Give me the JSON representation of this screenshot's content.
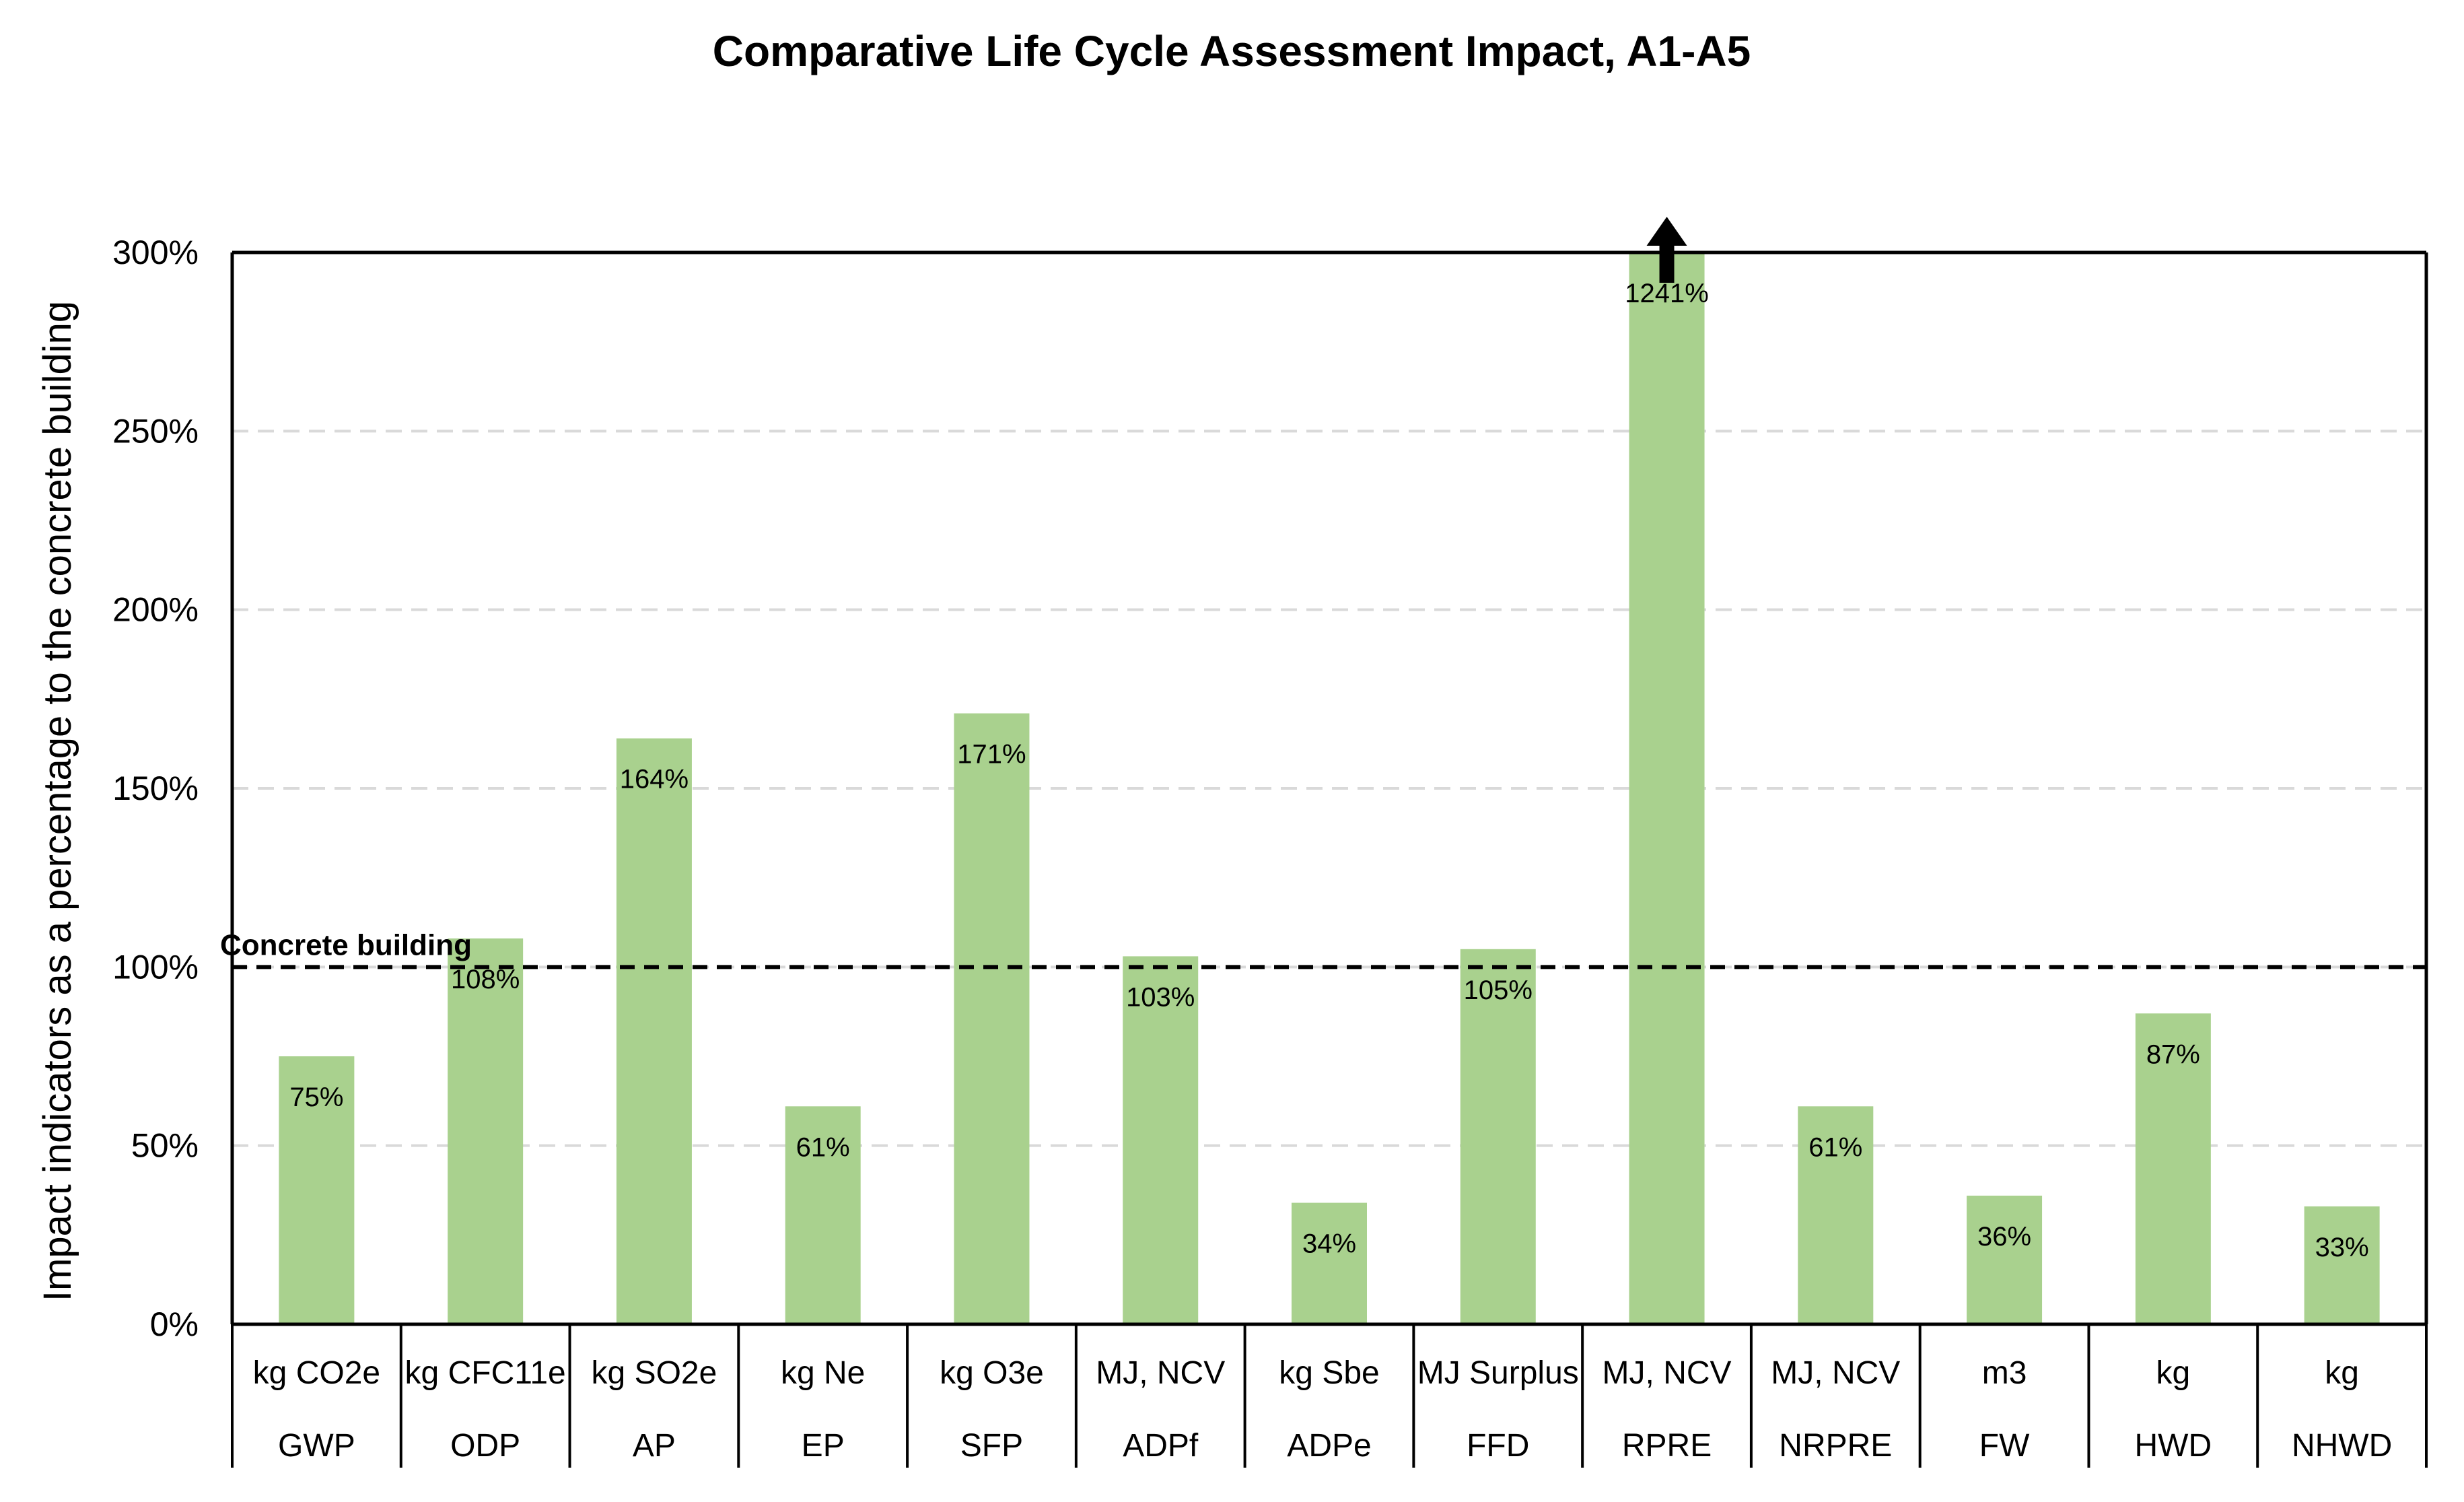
{
  "chart_data": {
    "type": "bar",
    "title": "Comparative Life Cycle Assessment Impact, A1-A5",
    "ylabel": "Impact indicators  as a percentage to the concrete building",
    "xlabel": "",
    "ylim": [
      0,
      300
    ],
    "yticks": [
      0,
      50,
      100,
      150,
      200,
      250,
      300
    ],
    "ytick_labels": [
      "0%",
      "50%",
      "100%",
      "150%",
      "200%",
      "250%",
      "300%"
    ],
    "grid": "horizontal dashed",
    "categories": [
      {
        "unit": "kg CO2e",
        "name": "GWP"
      },
      {
        "unit": "kg CFC11e",
        "name": "ODP"
      },
      {
        "unit": "kg SO2e",
        "name": "AP"
      },
      {
        "unit": "kg Ne",
        "name": "EP"
      },
      {
        "unit": "kg O3e",
        "name": "SFP"
      },
      {
        "unit": "MJ, NCV",
        "name": "ADPf"
      },
      {
        "unit": "kg Sbe",
        "name": "ADPe"
      },
      {
        "unit": "MJ Surplus",
        "name": "FFD"
      },
      {
        "unit": "MJ, NCV",
        "name": "RPRE"
      },
      {
        "unit": "MJ, NCV",
        "name": "NRPRE"
      },
      {
        "unit": "m3",
        "name": "FW"
      },
      {
        "unit": "kg",
        "name": "HWD"
      },
      {
        "unit": "kg",
        "name": "NHWD"
      }
    ],
    "values": [
      75,
      108,
      164,
      61,
      171,
      103,
      34,
      105,
      1241,
      61,
      36,
      87,
      33
    ],
    "data_labels": [
      "75%",
      "108%",
      "164%",
      "61%",
      "171%",
      "103%",
      "34%",
      "105%",
      "1241%",
      "61%",
      "36%",
      "87%",
      "33%"
    ],
    "clipped_note": "RPRE value exceeds axis maximum (arrow indicates off-scale)",
    "reference_line": {
      "value": 100,
      "label": "Concrete building"
    },
    "colors": {
      "bar": "#a9d18e",
      "axis": "#000000",
      "grid": "#d9d9d9",
      "reference": "#000000"
    }
  }
}
